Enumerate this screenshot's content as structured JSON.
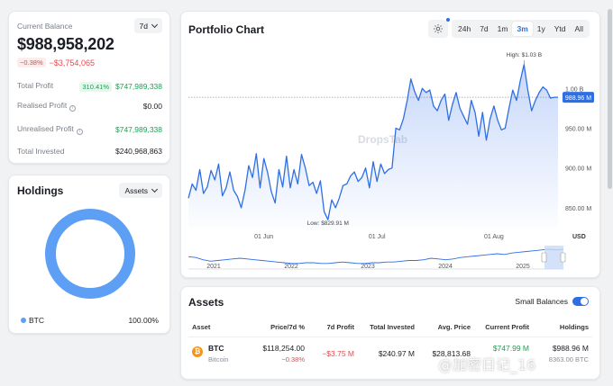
{
  "balance": {
    "title": "Current Balance",
    "period": "7d",
    "value": "$988,958,202",
    "change_pct": "−0.38%",
    "change_abs": "−$3,754,065",
    "rows": [
      {
        "label": "Total Profit",
        "badge": "310.41%",
        "value": "$747,989,338"
      },
      {
        "label": "Realised Profit",
        "value": "$0.00"
      },
      {
        "label": "Unrealised Profit",
        "value": "$747,989,338"
      },
      {
        "label": "Total Invested",
        "value": "$240,968,863"
      }
    ]
  },
  "holdings": {
    "title": "Holdings",
    "selector": "Assets",
    "legend": {
      "name": "BTC",
      "pct": "100.00%"
    },
    "color": "#5d9ff5"
  },
  "chart": {
    "title": "Portfolio Chart",
    "ranges": [
      "24h",
      "7d",
      "1m",
      "3m",
      "1y",
      "Ytd",
      "All"
    ],
    "active_range": "3m",
    "watermark": "DropsTab"
  },
  "chart_data": {
    "type": "area",
    "yticks": [
      "1.00 B",
      "950.00 M",
      "900.00 M",
      "850.00 M"
    ],
    "ytick_values": [
      1000,
      950,
      900,
      850
    ],
    "ylim": [
      825,
      1040
    ],
    "y_unit": "USD",
    "xticks": [
      "01 Jun",
      "01 Jul",
      "01 Aug"
    ],
    "xtick_days": [
      20,
      50,
      81
    ],
    "high_label": "High: $1.03 B",
    "low_label": "Low: $829.91 M",
    "current_label": "988.96 M",
    "current_value": 988.96,
    "series": [
      {
        "values": [
          862,
          880,
          872,
          898,
          868,
          876,
          897,
          885,
          905,
          865,
          875,
          895,
          872,
          864,
          850,
          872,
          903,
          888,
          918,
          875,
          912,
          894,
          870,
          856,
          898,
          876,
          915,
          875,
          898,
          880,
          917,
          900,
          878,
          882,
          868,
          884,
          845,
          835,
          860,
          850,
          862,
          878,
          880,
          890,
          895,
          883,
          888,
          900,
          875,
          908,
          883,
          905,
          893,
          898,
          900,
          950,
          948,
          962,
          985,
          1012,
          996,
          985,
          1000,
          995,
          998,
          978,
          972,
          985,
          993,
          960,
          980,
          995,
          975,
          965,
          955,
          985,
          970,
          940,
          970,
          935,
          962,
          978,
          960,
          948,
          950,
          975,
          998,
          985,
          1010,
          1030,
          998,
          972,
          985,
          995,
          1002,
          998,
          988,
          989,
          989
        ],
        "color": "#2f6fe4"
      }
    ],
    "navigator": {
      "xticks": [
        "2021",
        "2022",
        "2023",
        "2024",
        "2025"
      ],
      "values": [
        14,
        13,
        10,
        8,
        9,
        10,
        11,
        12,
        11,
        10,
        9,
        8,
        7,
        6,
        5,
        5,
        6,
        6,
        5,
        5,
        6,
        7,
        6,
        5,
        5,
        6,
        6,
        7,
        7,
        8,
        9,
        9,
        10,
        12,
        11,
        10,
        11,
        13,
        14,
        15,
        16,
        17,
        18,
        17,
        19,
        20,
        21,
        22,
        23,
        24,
        23,
        24
      ]
    }
  },
  "assets": {
    "title": "Assets",
    "small_balances": "Small Balances",
    "columns": [
      "Asset",
      "Price/7d %",
      "7d Profit",
      "Total Invested",
      "Avg. Price",
      "Current Profit",
      "Holdings"
    ],
    "rows": [
      {
        "symbol": "BTC",
        "name": "Bitcoin",
        "price": "$118,254.00",
        "price_change": "−0.38%",
        "profit_7d": "−$3.75 M",
        "total_invested": "$240.97 M",
        "avg_price": "$28,813.68",
        "current_profit": "$747.99 M",
        "holdings_value": "$988.96 M",
        "holdings_amount": "8363.00 BTC"
      }
    ]
  },
  "overlay": {
    "watermark_text": "@加密日记_16"
  }
}
